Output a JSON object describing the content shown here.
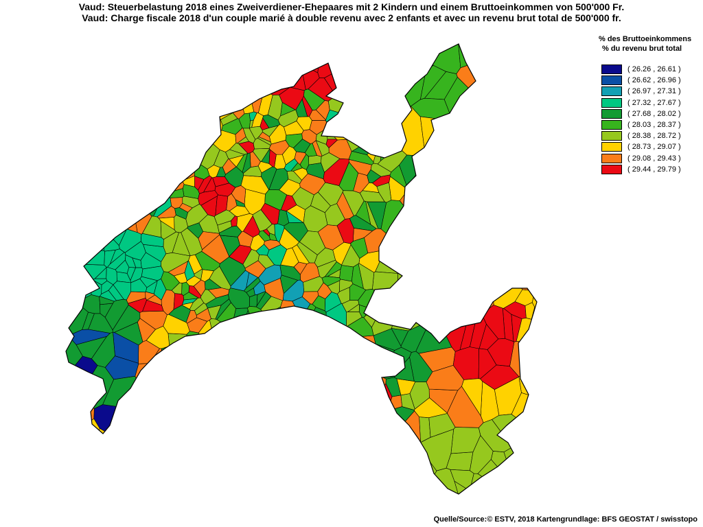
{
  "title": {
    "line_de": "Vaud: Steuerbelastung 2018 eines Zweiverdiener-Ehepaares mit 2 Kindern und einem Bruttoeinkommen von 500'000 Fr.",
    "line_fr": "Vaud: Charge fiscale 2018 d'un couple marié à double revenu avec 2 enfants et avec un revenu brut total de 500'000 fr."
  },
  "legend": {
    "title_de": "% des Bruttoeinkommens",
    "title_fr": "% du revenu brut total",
    "placement": "top-right",
    "classes": [
      {
        "label": "( 26.26 , 26.61 )",
        "color": "#0a0a8c"
      },
      {
        "label": "( 26.62 , 26.96 )",
        "color": "#0a4fa6"
      },
      {
        "label": "( 26.97 , 27.31 )",
        "color": "#12a0b4"
      },
      {
        "label": "( 27.32 , 27.67 )",
        "color": "#00c882"
      },
      {
        "label": "( 27.68 , 28.02 )",
        "color": "#129b32"
      },
      {
        "label": "( 28.03 , 28.37 )",
        "color": "#37b41e"
      },
      {
        "label": "( 28.38 , 28.72 )",
        "color": "#96c81e"
      },
      {
        "label": "( 28.73 , 29.07 )",
        "color": "#ffd200"
      },
      {
        "label": "( 29.08 , 29.43 )",
        "color": "#fa7d19"
      },
      {
        "label": "( 29.44 , 29.79 )",
        "color": "#eb0a14"
      }
    ]
  },
  "source": "Quelle/Source:© ESTV, 2018 Kartengrundlage: BFS GEOSTAT / swisstopo",
  "map": {
    "region": "Vaud",
    "stroke_color": "#000000",
    "background": "#ffffff"
  }
}
